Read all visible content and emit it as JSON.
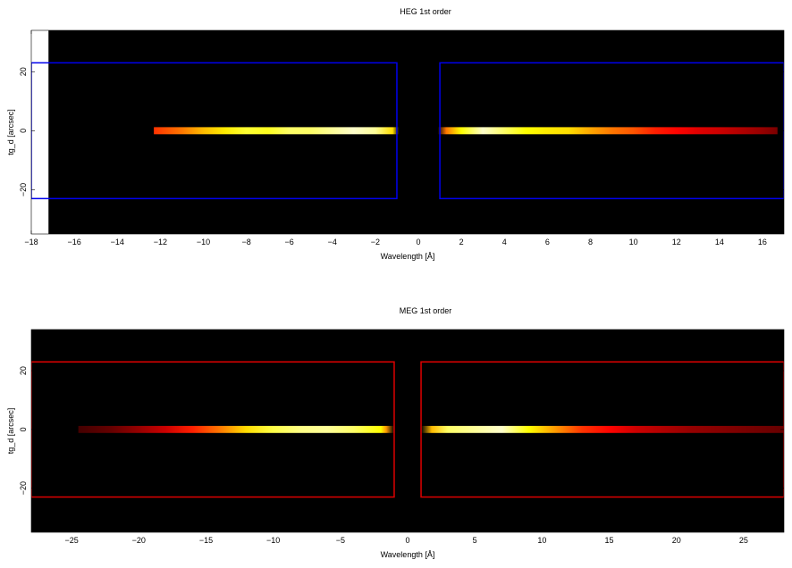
{
  "chart_data": [
    {
      "type": "heatmap",
      "title": "HEG 1st order",
      "xlabel": "Wavelength [Å]",
      "ylabel": "tg_d [arcsec]",
      "xlim": [
        -18,
        17
      ],
      "ylim": [
        -35,
        34
      ],
      "xticks": [
        -18,
        -16,
        -14,
        -12,
        -10,
        -8,
        -6,
        -4,
        -2,
        0,
        2,
        4,
        6,
        8,
        10,
        12,
        14,
        16
      ],
      "yticks": [
        -20,
        0,
        20
      ],
      "image_extent_x": [
        -17.2,
        17
      ],
      "colormap": "hot (black-red-yellow-white)",
      "region_color": "#0000ee",
      "regions": [
        {
          "x": [
            -18,
            -1.0
          ],
          "y": [
            -23,
            23
          ]
        },
        {
          "x": [
            1.0,
            17
          ],
          "y": [
            -23,
            23
          ]
        }
      ],
      "spectrum": {
        "y_center": 0,
        "y_halfwidth": 1.2,
        "x": [
          -12.3,
          -11,
          -10,
          -9,
          -8,
          -7,
          -6,
          -5,
          -4,
          -3,
          -2,
          -1.2,
          -0.9,
          0.9,
          1.3,
          2,
          3,
          4,
          5,
          6,
          7,
          8,
          9,
          10,
          11,
          12,
          13,
          14,
          15,
          16,
          16.7
        ],
        "intensity": [
          0.45,
          0.55,
          0.65,
          0.72,
          0.8,
          0.78,
          0.85,
          0.85,
          0.9,
          0.95,
          0.9,
          0.7,
          0.0,
          0.0,
          0.55,
          0.75,
          0.95,
          0.85,
          0.75,
          0.72,
          0.7,
          0.62,
          0.55,
          0.5,
          0.42,
          0.38,
          0.33,
          0.3,
          0.26,
          0.22,
          0.18
        ]
      }
    },
    {
      "type": "heatmap",
      "title": "MEG 1st order",
      "xlabel": "Wavelength [Å]",
      "ylabel": "tg_d [arcsec]",
      "xlim": [
        -28,
        28
      ],
      "ylim": [
        -35,
        34
      ],
      "xticks": [
        -25,
        -20,
        -15,
        -10,
        -5,
        0,
        5,
        10,
        15,
        20,
        25
      ],
      "yticks": [
        -20,
        0,
        20
      ],
      "image_extent_x": [
        -28,
        28
      ],
      "colormap": "hot (black-red-yellow-white)",
      "region_color": "#dd0000",
      "regions": [
        {
          "x": [
            -28,
            -1.0
          ],
          "y": [
            -23,
            23
          ]
        },
        {
          "x": [
            1.0,
            28
          ],
          "y": [
            -23,
            23
          ]
        }
      ],
      "spectrum": {
        "y_center": 0,
        "y_halfwidth": 1.2,
        "x": [
          -24.5,
          -22,
          -20,
          -18,
          -16,
          -14,
          -12,
          -10,
          -8,
          -6,
          -4,
          -2,
          -1.6,
          -1.0,
          1.0,
          1.8,
          3,
          5,
          7,
          9,
          11,
          13,
          15,
          17,
          19,
          21,
          23,
          25,
          27,
          28
        ],
        "intensity": [
          0.1,
          0.15,
          0.22,
          0.3,
          0.42,
          0.55,
          0.7,
          0.82,
          0.88,
          0.9,
          0.85,
          0.75,
          0.6,
          0.0,
          0.0,
          0.65,
          0.85,
          0.9,
          0.95,
          0.75,
          0.6,
          0.45,
          0.38,
          0.3,
          0.26,
          0.22,
          0.2,
          0.18,
          0.16,
          0.15
        ]
      }
    }
  ]
}
